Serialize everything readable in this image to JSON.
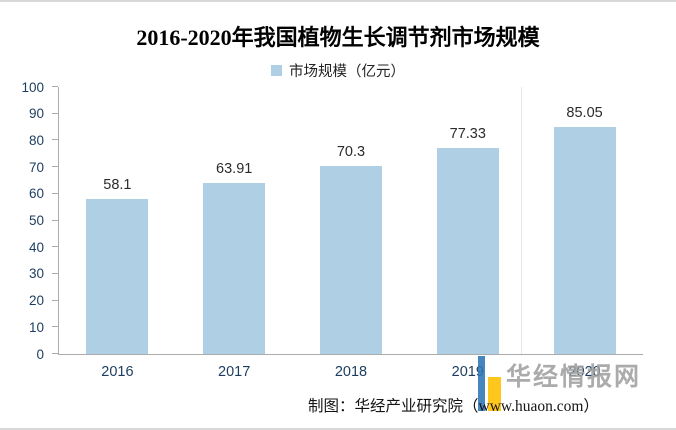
{
  "chart_data": {
    "type": "bar",
    "title": "2016-2020年我国植物生长调节剂市场规模",
    "legend": "市场规模（亿元）",
    "categories": [
      "2016",
      "2017",
      "2018",
      "2019",
      "2020"
    ],
    "values": [
      58.1,
      63.91,
      70.3,
      77.33,
      85.05
    ],
    "ylim": [
      0,
      100
    ],
    "ytick_step": 10,
    "grid": false,
    "legend_position": "top",
    "bar_color": "#aecfe4",
    "axis_label_color": "#1c3d5f"
  },
  "footer": {
    "credit": "制图：华经产业研究院（www.huaon.com）"
  },
  "watermark": {
    "text": "华经情报网",
    "logo_blue": "#2e75b6",
    "logo_yellow": "#ffc000"
  }
}
